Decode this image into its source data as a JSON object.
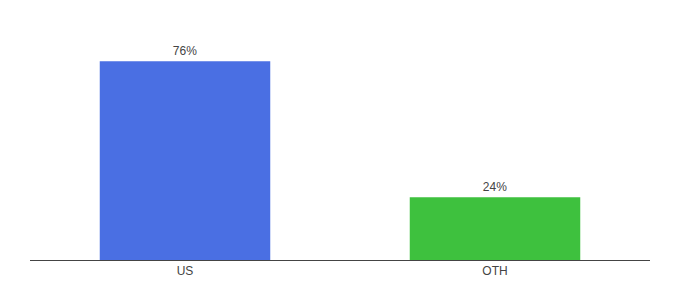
{
  "chart_data": {
    "type": "bar",
    "categories": [
      "US",
      "OTH"
    ],
    "values": [
      76,
      24
    ],
    "value_labels": [
      "76%",
      "24%"
    ],
    "colors": [
      "#4a6fe3",
      "#3ec13e"
    ],
    "ylim": [
      0,
      88
    ],
    "data_labels": true,
    "tick_labels": "x",
    "grid": false
  }
}
